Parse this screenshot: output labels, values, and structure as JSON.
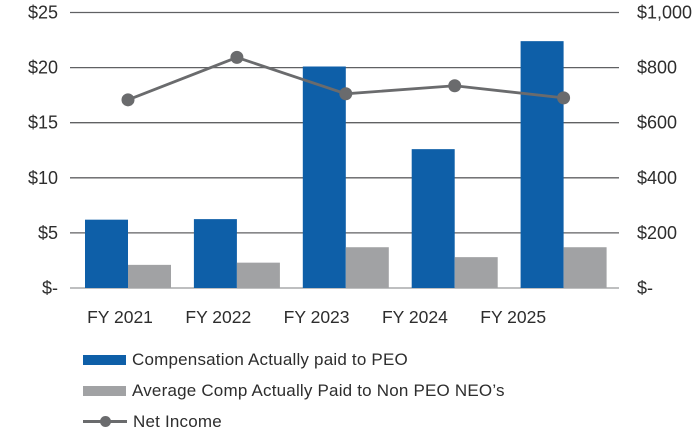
{
  "chart_data": {
    "type": "bar+line combo",
    "categories": [
      "FY 2021",
      "FY 2022",
      "FY 2023",
      "FY 2024",
      "FY 2025"
    ],
    "series": [
      {
        "name": "Compensation Actually paid to PEO",
        "type": "bar",
        "axis": "left",
        "color": "#0e5fa8",
        "values": [
          6.2,
          6.25,
          20.1,
          12.6,
          22.4
        ]
      },
      {
        "name": "Average Comp Actually Paid to Non PEO NEO’s",
        "type": "bar",
        "axis": "left",
        "color": "#a1a2a4",
        "values": [
          2.1,
          2.3,
          3.7,
          2.8,
          3.7
        ]
      },
      {
        "name": "Net Income",
        "type": "line",
        "axis": "right",
        "color": "#6a6b6d",
        "values": [
          683,
          837,
          705,
          734,
          690
        ]
      }
    ],
    "left_axis": {
      "max": 25,
      "min": 0,
      "tick_values": [
        25,
        20,
        15,
        10,
        5,
        0
      ],
      "tick_labels": [
        "$25",
        "$20",
        "$15",
        "$10",
        "$5",
        "$-"
      ]
    },
    "right_axis": {
      "max": 1000,
      "min": 0,
      "tick_values": [
        1000,
        800,
        600,
        400,
        200,
        0
      ],
      "tick_labels": [
        "$1,000",
        "$800",
        "$600",
        "$400",
        "$200",
        "$-"
      ]
    },
    "grid": "horizontal",
    "legend_position": "bottom-left",
    "title": "",
    "colors": {
      "grid_line": "#606163",
      "baseline": "#a9aaac",
      "tick_text": "#2d2d2d",
      "category_text": "#2d2d2d",
      "background": "#ffffff"
    }
  },
  "legend": {
    "items": [
      {
        "label": "Compensation Actually paid to PEO",
        "swatch": "blue-bar"
      },
      {
        "label": "Average Comp Actually Paid to Non PEO NEO’s",
        "swatch": "gray-bar"
      },
      {
        "label": "Net Income",
        "swatch": "line-marker"
      }
    ]
  }
}
